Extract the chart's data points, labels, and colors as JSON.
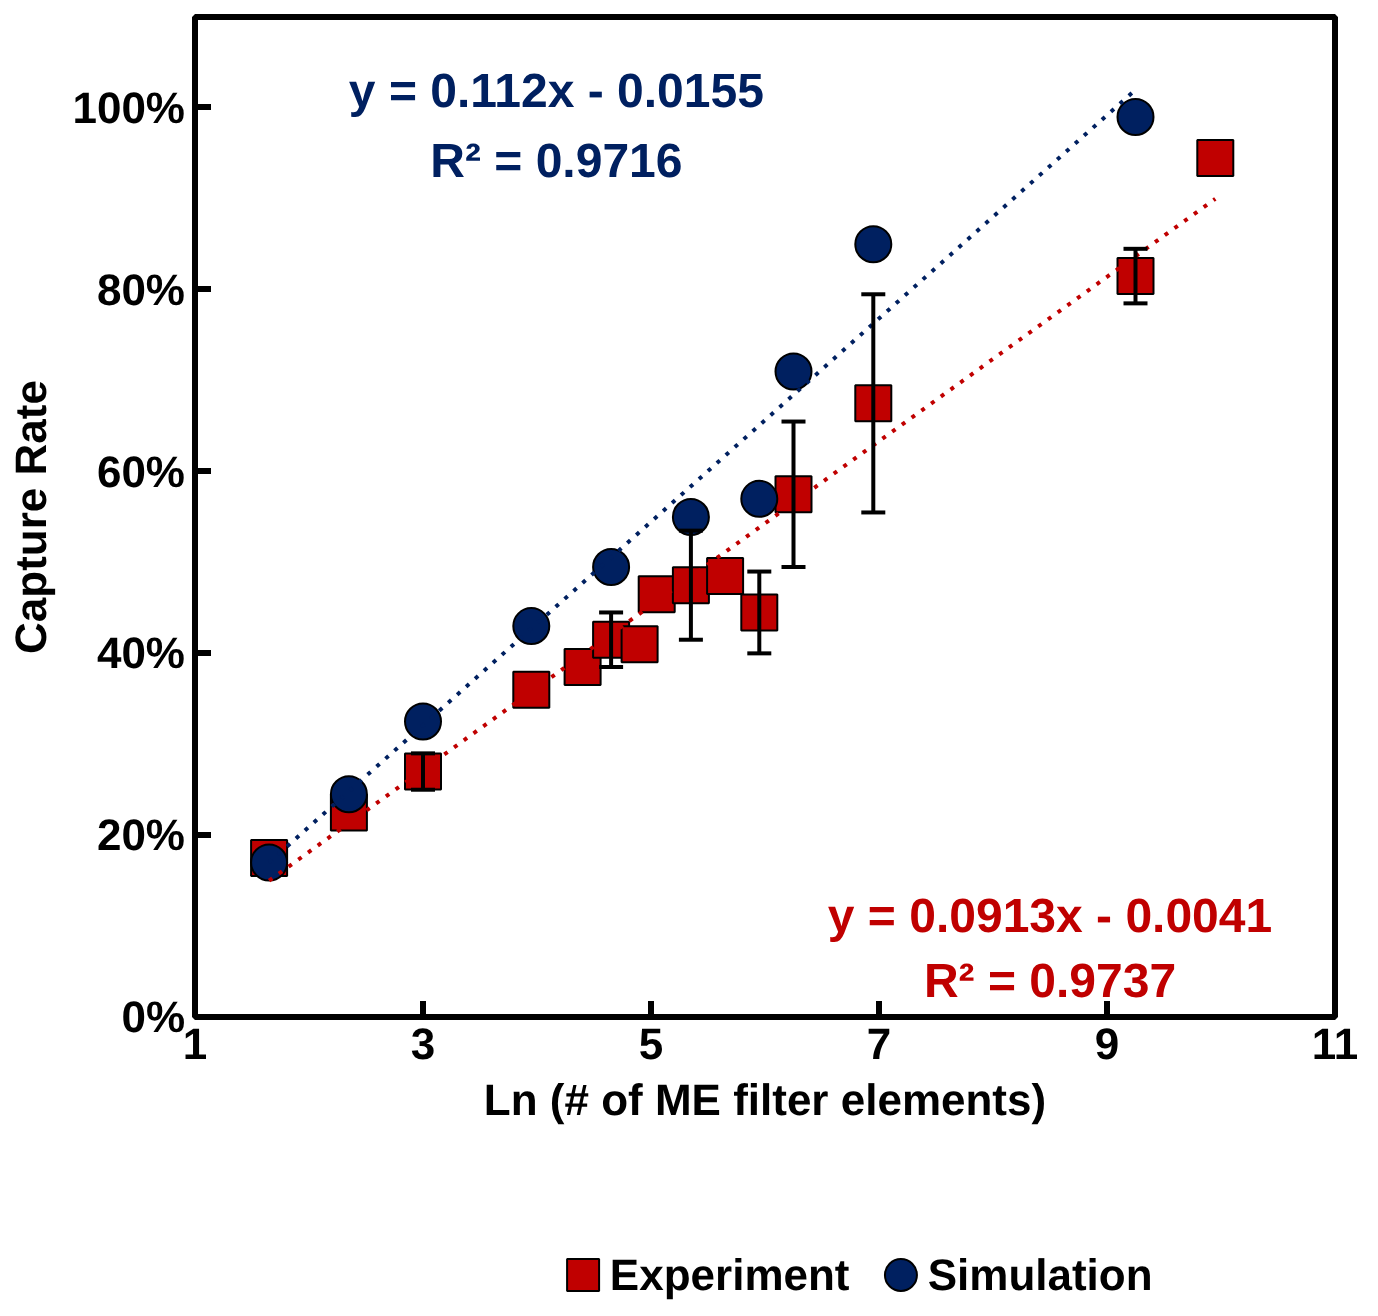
{
  "chart_data": {
    "type": "scatter",
    "xlabel": "Ln (# of ME filter elements)",
    "ylabel": "Capture Rate",
    "xlim": [
      1,
      11
    ],
    "xticks": [
      1,
      3,
      5,
      7,
      9,
      11
    ],
    "ylim": [
      0,
      110
    ],
    "yticks": [
      {
        "value": 0,
        "label": "0%"
      },
      {
        "value": 20,
        "label": "20%"
      },
      {
        "value": 40,
        "label": "40%"
      },
      {
        "value": 60,
        "label": "60%"
      },
      {
        "value": 80,
        "label": "80%"
      },
      {
        "value": 100,
        "label": "100%"
      }
    ],
    "grid": false,
    "legend": "bottom",
    "series": [
      {
        "name": "Experiment",
        "marker": "square",
        "color": "#c00000",
        "x": [
          1.65,
          2.35,
          3.0,
          3.95,
          4.4,
          4.65,
          4.9,
          5.05,
          5.35,
          5.65,
          5.95,
          6.25,
          6.95,
          9.25,
          9.95
        ],
        "values": [
          17.5,
          22.5,
          27,
          36,
          38.5,
          41.5,
          41,
          46.5,
          47.5,
          48.5,
          44.5,
          57.5,
          67.5,
          81.5,
          94.5
        ],
        "errors": [
          null,
          null,
          2,
          null,
          null,
          3,
          null,
          null,
          6,
          null,
          4.5,
          8,
          12,
          3,
          null
        ]
      },
      {
        "name": "Simulation",
        "marker": "circle",
        "color": "#002060",
        "x": [
          1.65,
          2.35,
          3.0,
          3.95,
          4.65,
          5.35,
          5.95,
          6.25,
          6.95,
          9.25
        ],
        "values": [
          17,
          24.5,
          32.5,
          43,
          49.5,
          55,
          57,
          71,
          85,
          99
        ]
      },
      {
        "type": "line",
        "line_style": "dotted",
        "color": "#002060",
        "x": [
          1.65,
          9.25
        ],
        "values": [
          17,
          102
        ]
      },
      {
        "type": "line",
        "line_style": "dotted",
        "color": "#c00000",
        "x": [
          1.65,
          9.95
        ],
        "values": [
          15,
          90
        ]
      }
    ],
    "annotations": [
      "y = 0.112x - 0.0155",
      "R² = 0.9716",
      "y = 0.0913x - 0.0041",
      "R² = 0.9737"
    ]
  }
}
